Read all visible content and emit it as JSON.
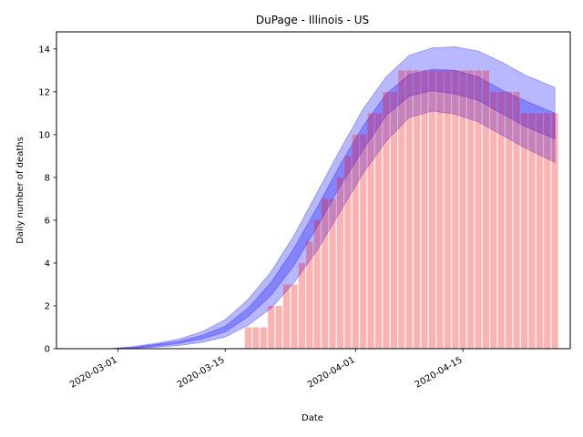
{
  "chart_data": {
    "type": "bar",
    "title": "DuPage - Illinois - US",
    "xlabel": "Date",
    "ylabel": "Daily number of deaths",
    "x_range": [
      "2020-02-22",
      "2020-04-29"
    ],
    "ylim": [
      0,
      14.8
    ],
    "x_ticks": [
      "2020-03-01",
      "2020-03-15",
      "2020-04-01",
      "2020-04-15"
    ],
    "y_ticks": [
      0,
      2,
      4,
      6,
      8,
      10,
      12,
      14
    ],
    "grid": false,
    "colors": {
      "bars": "#ff0000",
      "band": "#0000ff"
    },
    "bars": {
      "dates": [
        "2020-03-18",
        "2020-03-19",
        "2020-03-20",
        "2020-03-21",
        "2020-03-22",
        "2020-03-23",
        "2020-03-24",
        "2020-03-25",
        "2020-03-26",
        "2020-03-27",
        "2020-03-28",
        "2020-03-29",
        "2020-03-30",
        "2020-03-31",
        "2020-04-01",
        "2020-04-02",
        "2020-04-03",
        "2020-04-04",
        "2020-04-05",
        "2020-04-06",
        "2020-04-07",
        "2020-04-08",
        "2020-04-09",
        "2020-04-10",
        "2020-04-11",
        "2020-04-12",
        "2020-04-13",
        "2020-04-14",
        "2020-04-15",
        "2020-04-16",
        "2020-04-17",
        "2020-04-18",
        "2020-04-19",
        "2020-04-20",
        "2020-04-21",
        "2020-04-22",
        "2020-04-23",
        "2020-04-24",
        "2020-04-25",
        "2020-04-26",
        "2020-04-27"
      ],
      "values": [
        1,
        1,
        1,
        2,
        2,
        3,
        3,
        4,
        5,
        6,
        7,
        7,
        8,
        9,
        10,
        10,
        11,
        11,
        12,
        12,
        13,
        13,
        13,
        13,
        13,
        13,
        13,
        13,
        13,
        13,
        13,
        13,
        12,
        12,
        12,
        12,
        11,
        11,
        11,
        11,
        11
      ]
    },
    "fit": {
      "dates": [
        "2020-02-22",
        "2020-02-29",
        "2020-03-03",
        "2020-03-06",
        "2020-03-09",
        "2020-03-12",
        "2020-03-15",
        "2020-03-18",
        "2020-03-21",
        "2020-03-24",
        "2020-03-27",
        "2020-03-30",
        "2020-04-02",
        "2020-04-05",
        "2020-04-08",
        "2020-04-11",
        "2020-04-14",
        "2020-04-17",
        "2020-04-20",
        "2020-04-23",
        "2020-04-27"
      ],
      "outer_upper": [
        0.0,
        0.0,
        0.1,
        0.25,
        0.45,
        0.8,
        1.35,
        2.3,
        3.6,
        5.3,
        7.3,
        9.3,
        11.2,
        12.7,
        13.7,
        14.05,
        14.1,
        13.9,
        13.4,
        12.8,
        12.2
      ],
      "inner_upper": [
        0.0,
        0.0,
        0.06,
        0.2,
        0.35,
        0.62,
        1.05,
        1.9,
        3.1,
        4.7,
        6.6,
        8.6,
        10.4,
        11.9,
        12.8,
        13.05,
        13.0,
        12.7,
        12.1,
        11.6,
        11.0
      ],
      "median": [
        0.0,
        0.0,
        0.05,
        0.15,
        0.3,
        0.55,
        0.9,
        1.7,
        2.8,
        4.3,
        6.2,
        8.1,
        9.9,
        11.4,
        12.3,
        12.6,
        12.5,
        12.2,
        11.6,
        11.0,
        10.4
      ],
      "inner_lower": [
        0.0,
        0.0,
        0.04,
        0.12,
        0.25,
        0.45,
        0.78,
        1.5,
        2.5,
        3.9,
        5.7,
        7.6,
        9.3,
        10.9,
        11.8,
        12.05,
        11.9,
        11.6,
        11.0,
        10.4,
        9.8
      ],
      "outer_lower": [
        0.0,
        0.0,
        0.02,
        0.07,
        0.15,
        0.3,
        0.55,
        1.1,
        1.9,
        3.1,
        4.6,
        6.4,
        8.2,
        9.7,
        10.8,
        11.1,
        10.95,
        10.6,
        10.0,
        9.4,
        8.7
      ]
    }
  }
}
